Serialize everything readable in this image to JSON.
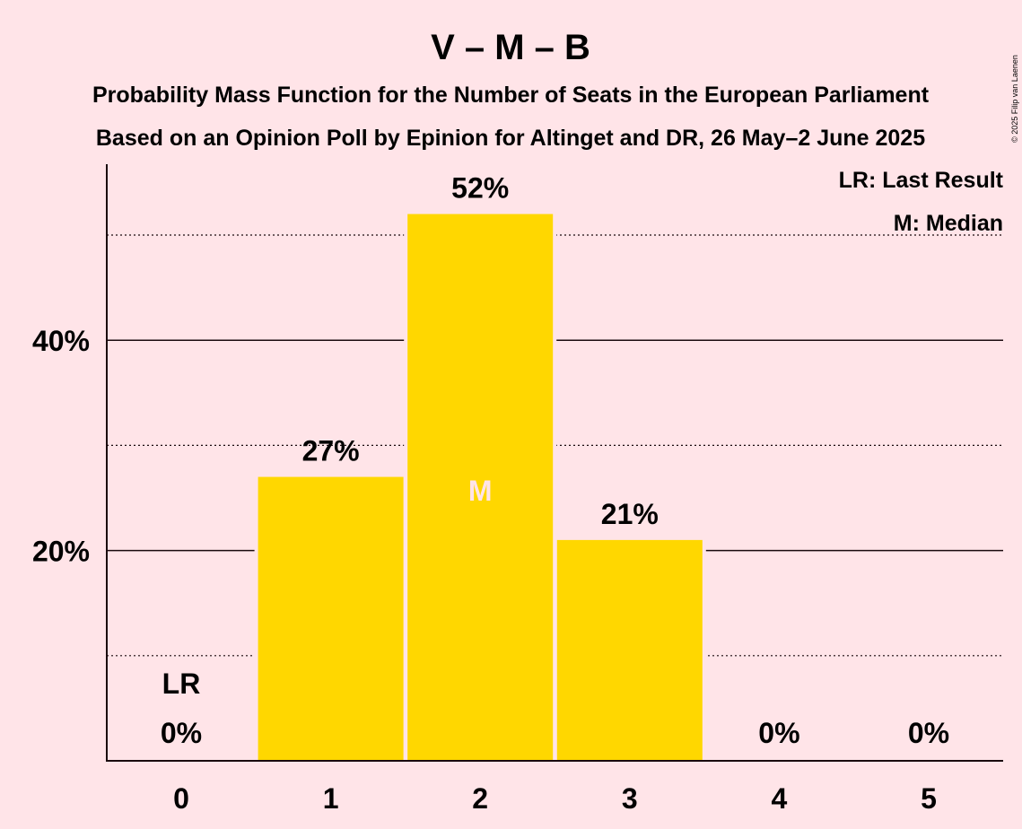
{
  "colors": {
    "background": "#FFE4E8",
    "bar": "#FFD700",
    "text": "#1a0a0e",
    "median_text": "#FFE4E8"
  },
  "chart_data": {
    "type": "bar",
    "title": "V – M – B",
    "subtitle_lines": [
      "Probability Mass Function for the Number of Seats in the European Parliament",
      "Based on an Opinion Poll by Epinion for Altinget and DR, 26 May–2 June 2025"
    ],
    "copyright": "© 2025 Filip van Laenen",
    "categories": [
      "0",
      "1",
      "2",
      "3",
      "4",
      "5"
    ],
    "values": [
      0,
      27,
      52,
      21,
      0,
      0
    ],
    "value_labels": [
      "0%",
      "27%",
      "52%",
      "21%",
      "0%",
      "0%"
    ],
    "ylim": [
      0,
      56.7
    ],
    "major_gridlines": [
      20,
      40
    ],
    "minor_gridlines": [
      10,
      30,
      50
    ],
    "ytick_labels": [
      "20%",
      "40%"
    ],
    "legend": [
      "LR: Last Result",
      "M: Median"
    ],
    "legend_position": "top-right",
    "last_result": {
      "category": "0",
      "label": "LR"
    },
    "median": {
      "category": "2",
      "label": "M"
    }
  }
}
